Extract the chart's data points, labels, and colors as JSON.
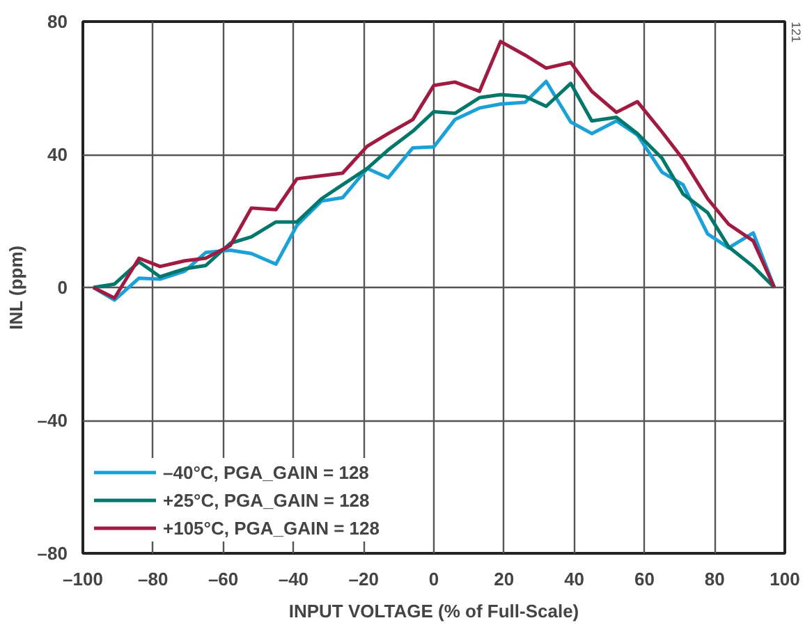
{
  "chart_data": {
    "type": "line",
    "xlabel": "INPUT VOLTAGE (% of Full-Scale)",
    "ylabel": "INL (ppm)",
    "x": [
      -97,
      -91,
      -84,
      -78,
      -71,
      -65,
      -58,
      -52,
      -45,
      -39,
      -32,
      -26,
      -19,
      -13,
      -6,
      0,
      6,
      13,
      19,
      26,
      32,
      39,
      45,
      52,
      58,
      65,
      71,
      78,
      84,
      91,
      97
    ],
    "series": [
      {
        "name": "–40°C, PGA_GAIN = 128",
        "color": "#1ba1d8",
        "values": [
          0,
          -3.8,
          2.8,
          2.5,
          4.9,
          10.5,
          11.2,
          10.2,
          7,
          18.7,
          26,
          27,
          35.8,
          33,
          42,
          42.3,
          50.5,
          54,
          55.2,
          55.7,
          62,
          49.8,
          46.3,
          50.1,
          45.9,
          34.7,
          30.9,
          16.1,
          11.9,
          16.4,
          0
        ]
      },
      {
        "name": "+25°C, PGA_GAIN = 128",
        "color": "#00776b",
        "values": [
          0,
          1,
          7.7,
          3.2,
          5.6,
          6.6,
          13.3,
          15.2,
          19.7,
          19.7,
          26.7,
          30.9,
          35.8,
          41.4,
          47,
          52.9,
          52.4,
          57.1,
          58,
          57.5,
          54.5,
          61.4,
          50.1,
          51.2,
          46.3,
          38.9,
          28.1,
          22.5,
          12.2,
          6.3,
          0
        ]
      },
      {
        "name": "+105°C, PGA_GAIN = 128",
        "color": "#a01a42",
        "values": [
          0,
          -3.2,
          8.8,
          6.3,
          8,
          8.8,
          12.6,
          23.9,
          23.4,
          32.7,
          33.6,
          34.4,
          42.5,
          46.3,
          50.5,
          60.8,
          61.8,
          59,
          74,
          69.9,
          66,
          67.7,
          59,
          52.7,
          55.9,
          46.8,
          38.6,
          26.7,
          19,
          14,
          0
        ]
      }
    ],
    "xlim": [
      -100,
      100
    ],
    "ylim": [
      -80,
      80
    ],
    "xticks": [
      {
        "value": -100,
        "label": "–100"
      },
      {
        "value": -80,
        "label": "–80"
      },
      {
        "value": -60,
        "label": "–60"
      },
      {
        "value": -40,
        "label": "–40"
      },
      {
        "value": -20,
        "label": "–20"
      },
      0,
      20,
      40,
      60,
      80,
      100
    ],
    "yticks": [
      {
        "value": -80,
        "label": "–80"
      },
      {
        "value": -40,
        "label": "–40"
      },
      0,
      40,
      80
    ],
    "grid": true,
    "legend": "bottom left",
    "line_style": "solid",
    "marker": "none",
    "annotations": [
      "121"
    ]
  }
}
